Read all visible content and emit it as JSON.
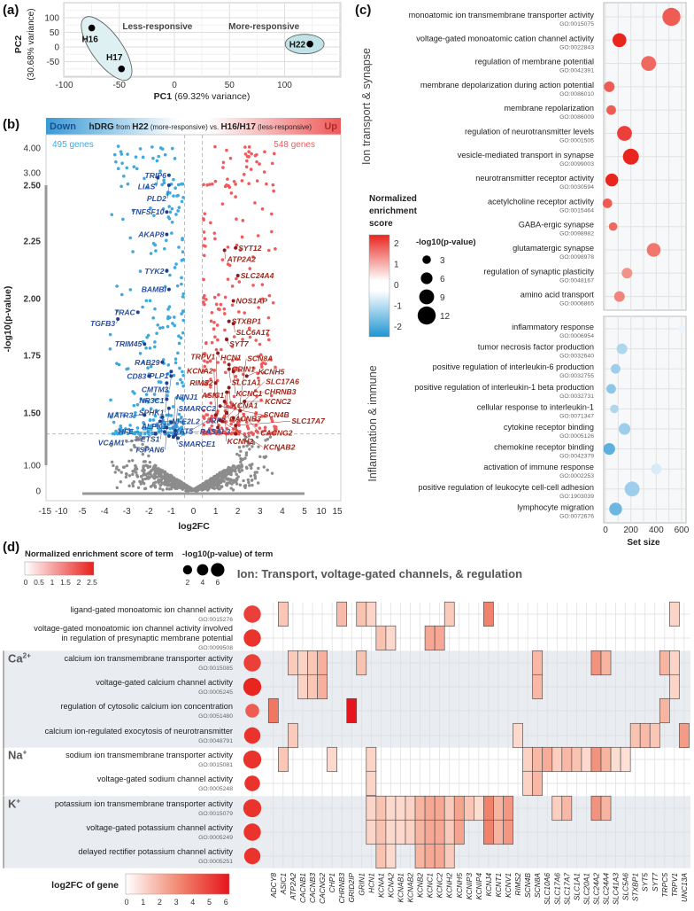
{
  "panel_labels": {
    "a": "(a)",
    "b": "(b)",
    "c": "(c)",
    "d": "(d)"
  },
  "chart_data": [
    {
      "type": "scatter",
      "title": "PCA",
      "xlabel_bold": "PC1",
      "xlabel": "(69.32% variance)",
      "ylabel_bold": "PC2",
      "ylabel": "(30.68% variance)",
      "xticks": [
        -100,
        -50,
        0,
        50,
        100
      ],
      "yticks": [
        -50,
        0,
        50,
        100
      ],
      "xlim": [
        -100,
        151
      ],
      "ylim": [
        -103,
        151
      ],
      "points": [
        {
          "label": "H16",
          "x": -75,
          "y": 65
        },
        {
          "label": "H17",
          "x": -48,
          "y": -75
        },
        {
          "label": "H22",
          "x": 123,
          "y": 10
        }
      ],
      "groups": [
        {
          "label": "Less-responsive",
          "members": [
            "H16",
            "H17"
          ],
          "color": "#dff0f2"
        },
        {
          "label": "More-responsive",
          "members": [
            "H22"
          ],
          "color": "#bfe3e6"
        }
      ]
    },
    {
      "type": "scatter",
      "title": {
        "down": "Down",
        "up": "Up",
        "p1": "hDRG",
        "p2": " from ",
        "p3": "H22",
        "p4": " (more-responsive) vs. ",
        "p5": "H16/H17",
        "p6": " (less-responsive)"
      },
      "xlabel": "log2FC",
      "ylabel": "-log10(p-value)",
      "down_count": "495 genes",
      "up_count": "548 genes",
      "colors": {
        "down": "#3fa9de",
        "up": "#f05a5b",
        "ns": "#8c8c8c",
        "down_label": "#1f3f8f",
        "up_label": "#8b1a1a"
      },
      "xticks": [
        "-15",
        "-10",
        "-5",
        "-4",
        "-3",
        "-2",
        "-1",
        "0",
        "1",
        "2",
        "3",
        "4",
        "5",
        "10",
        "15"
      ],
      "yticks": [
        {
          "label": "4.00",
          "v": 4,
          "bold": false
        },
        {
          "label": "3.00",
          "v": 3,
          "bold": false
        },
        {
          "label": "2.50",
          "v": 2.5,
          "bold": true
        },
        {
          "label": "2.25",
          "v": 2.25,
          "bold": true
        },
        {
          "label": "2.00",
          "v": 2,
          "bold": true
        },
        {
          "label": "1.75",
          "v": 1.75,
          "bold": true
        },
        {
          "label": "1.50",
          "v": 1.5,
          "bold": true
        },
        {
          "label": "1.00",
          "v": 1,
          "bold": false
        },
        {
          "label": "0",
          "v": 0,
          "bold": false
        }
      ],
      "fc_threshold": 0.4,
      "p_threshold": 1.3,
      "down_genes": [
        {
          "g": "TRIP6",
          "x": -1.1,
          "y": 2.9
        },
        {
          "g": "LIAS",
          "x": -1.6,
          "y": 2.8
        },
        {
          "g": "PLD2",
          "x": -1.1,
          "y": 2.5
        },
        {
          "g": "TNFSF10",
          "x": -1.2,
          "y": 2.38
        },
        {
          "g": "AKAP8",
          "x": -1.2,
          "y": 2.28
        },
        {
          "g": "TYK2",
          "x": -1.2,
          "y": 2.12
        },
        {
          "g": "BAMBI",
          "x": -1.1,
          "y": 2.04
        },
        {
          "g": "TRAC",
          "x": -2.5,
          "y": 1.94
        },
        {
          "g": "TGFB3",
          "x": -3.4,
          "y": 1.91
        },
        {
          "g": "TRIM45",
          "x": -2.2,
          "y": 1.8
        },
        {
          "g": "RAB29",
          "x": -1.4,
          "y": 1.72
        },
        {
          "g": "PLP1",
          "x": -1.0,
          "y": 1.68
        },
        {
          "g": "CMTM3",
          "x": -1.0,
          "y": 1.66
        },
        {
          "g": "CD83",
          "x": -2.0,
          "y": 1.66
        },
        {
          "g": "NR3C1",
          "x": -1.2,
          "y": 1.63
        },
        {
          "g": "SPHK1",
          "x": -1.2,
          "y": 1.56
        },
        {
          "g": "ALPK1",
          "x": -1.1,
          "y": 1.52
        },
        {
          "g": "MATR3",
          "x": -2.2,
          "y": 1.48
        },
        {
          "g": "ETS1",
          "x": -1.4,
          "y": 1.46
        },
        {
          "g": "NFE2L2",
          "x": -1.5,
          "y": 1.42
        },
        {
          "g": "KAT5",
          "x": -1.0,
          "y": 1.41
        },
        {
          "g": "TSPAN6",
          "x": -1.2,
          "y": 1.36
        },
        {
          "g": "SMARCE1",
          "x": -0.8,
          "y": 1.33
        },
        {
          "g": "HFE",
          "x": -1.3,
          "y": 1.32
        },
        {
          "g": "VCAM1",
          "x": -1.7,
          "y": 1.3
        },
        {
          "g": "SMARCC2",
          "x": -0.8,
          "y": 1.29
        },
        {
          "g": "RASAL3",
          "x": -1.1,
          "y": 1.28
        },
        {
          "g": "NINJ1",
          "x": -0.9,
          "y": 1.27
        },
        {
          "g": "IRF3",
          "x": -0.7,
          "y": 1.26
        }
      ],
      "up_genes": [
        {
          "g": "SYT12",
          "x": 1.9,
          "y": 2.22
        },
        {
          "g": "ATP2A2",
          "x": 1.4,
          "y": 2.21
        },
        {
          "g": "SLC24A4",
          "x": 2.0,
          "y": 2.1
        },
        {
          "g": "NOS1AP",
          "x": 1.8,
          "y": 1.99
        },
        {
          "g": "STXBP1",
          "x": 1.6,
          "y": 1.9
        },
        {
          "g": "SLC6A17",
          "x": 1.8,
          "y": 1.89
        },
        {
          "g": "SYT7",
          "x": 1.5,
          "y": 1.82
        },
        {
          "g": "HCN1",
          "x": 1.1,
          "y": 1.76
        },
        {
          "g": "GRIN1",
          "x": 1.6,
          "y": 1.71
        },
        {
          "g": "SLC1A1",
          "x": 1.6,
          "y": 1.69
        },
        {
          "g": "KCNC1",
          "x": 1.8,
          "y": 1.68
        },
        {
          "g": "KCNH5",
          "x": 2.4,
          "y": 1.66
        },
        {
          "g": "RIMS2",
          "x": 1.0,
          "y": 1.63
        },
        {
          "g": "KCNA1",
          "x": 1.6,
          "y": 1.61
        },
        {
          "g": "CACNB3",
          "x": 1.5,
          "y": 1.59
        },
        {
          "g": "KCNH2",
          "x": 1.4,
          "y": 1.55
        },
        {
          "g": "KCNC2",
          "x": 2.3,
          "y": 1.55
        },
        {
          "g": "SCN4B",
          "x": 1.2,
          "y": 1.53
        },
        {
          "g": "CACNG2",
          "x": 2.1,
          "y": 1.51
        },
        {
          "g": "ASIC1",
          "x": 1.5,
          "y": 1.5
        },
        {
          "g": "KCNA2",
          "x": 1.0,
          "y": 1.48
        },
        {
          "g": "CHRNB3",
          "x": 1.8,
          "y": 1.45
        },
        {
          "g": "KCNAB2",
          "x": 1.2,
          "y": 1.43
        },
        {
          "g": "SLC17A6",
          "x": 1.3,
          "y": 1.42
        },
        {
          "g": "SLC17A7",
          "x": 1.9,
          "y": 1.38
        },
        {
          "g": "TRPV1",
          "x": 1.1,
          "y": 1.36
        },
        {
          "g": "SCN8A",
          "x": 1.9,
          "y": 1.3
        }
      ]
    },
    {
      "type": "scatter",
      "title": "GO enrichment",
      "xlabel": "Set size",
      "xticks": [
        0,
        200,
        400,
        600
      ],
      "xlim": [
        0,
        600
      ],
      "legend_color_title": [
        "Normalized",
        "enrichment",
        "score"
      ],
      "legend_color_ticks": [
        2,
        1,
        0,
        -1,
        -2
      ],
      "legend_size_title": "-log10(p-value)",
      "legend_size_values": [
        3,
        6,
        9,
        12
      ],
      "groups": [
        {
          "label": "Ion transport & synapse",
          "terms": [
            {
              "name": "monoatomic ion transmembrane transporter activity",
              "go": "GO:0015075",
              "size": 520,
              "nes": 1.8,
              "p": 12
            },
            {
              "name": "voltage-gated monoatomic cation channel activity",
              "go": "GO:0022843",
              "size": 110,
              "nes": 2.2,
              "p": 8
            },
            {
              "name": "regulation of membrane potential",
              "go": "GO:0042391",
              "size": 340,
              "nes": 1.7,
              "p": 9
            },
            {
              "name": "membrane depolarization during action potential",
              "go": "GO:0086010",
              "size": 30,
              "nes": 1.8,
              "p": 5
            },
            {
              "name": "membrane repolarization",
              "go": "GO:0086009",
              "size": 45,
              "nes": 1.8,
              "p": 4
            },
            {
              "name": "regulation of neurotransmitter levels",
              "go": "GO:0001505",
              "size": 150,
              "nes": 2.0,
              "p": 9
            },
            {
              "name": "vesicle-mediated transport in synapse",
              "go": "GO:0099003",
              "size": 200,
              "nes": 2.2,
              "p": 10
            },
            {
              "name": "neurotransmitter receptor activity",
              "go": "GO:0030594",
              "size": 50,
              "nes": 2.2,
              "p": 7
            },
            {
              "name": "acetylcholine receptor activity",
              "go": "GO:0015464",
              "size": 15,
              "nes": 1.8,
              "p": 4
            },
            {
              "name": "GABA-ergic synapse",
              "go": "GO:0098982",
              "size": 60,
              "nes": 1.7,
              "p": 3
            },
            {
              "name": "glutamatergic synapse",
              "go": "GO:0098978",
              "size": 380,
              "nes": 1.6,
              "p": 8
            },
            {
              "name": "regulation of synaptic plasticity",
              "go": "GO:0048167",
              "size": 170,
              "nes": 1.4,
              "p": 5
            },
            {
              "name": "amino acid transport",
              "go": "GO:0006865",
              "size": 110,
              "nes": 1.5,
              "p": 5
            }
          ]
        },
        {
          "label": "Inflammation & immune",
          "terms": [
            {
              "name": "inflammatory response",
              "go": "GO:0006954",
              "size": 600,
              "nes": -0.4,
              "p": 2
            },
            {
              "name": "tumor necrosis factor production",
              "go": "GO:0032640",
              "size": 130,
              "nes": -1.2,
              "p": 5
            },
            {
              "name": "positive regulation of interleukin-6 production",
              "go": "GO:0032755",
              "size": 80,
              "nes": -1.3,
              "p": 4
            },
            {
              "name": "positive regulation of interleukin-1 beta production",
              "go": "GO:0032731",
              "size": 45,
              "nes": -1.4,
              "p": 4
            },
            {
              "name": "cellular response to interleukin-1",
              "go": "GO:0071347",
              "size": 70,
              "nes": -1.2,
              "p": 3
            },
            {
              "name": "cytokine receptor binding",
              "go": "GO:0005126",
              "size": 150,
              "nes": -1.3,
              "p": 6
            },
            {
              "name": "chemokine receptor binding",
              "go": "GO:0042379",
              "size": 30,
              "nes": -1.7,
              "p": 6
            },
            {
              "name": "activation of immune response",
              "go": "GO:0002253",
              "size": 400,
              "nes": -0.8,
              "p": 5
            },
            {
              "name": "positive regulation of leukocyte cell-cell adhesion",
              "go": "GO:1903039",
              "size": 210,
              "nes": -1.3,
              "p": 9
            },
            {
              "name": "lymphocyte migration",
              "go": "GO:0072676",
              "size": 80,
              "nes": -1.6,
              "p": 7
            }
          ]
        }
      ]
    },
    {
      "type": "heatmap",
      "title": "Ion: Transport, voltage-gated channels, & regulation",
      "legend_nes_title": "Normalized enrichment score of term",
      "legend_nes_ticks": [
        "0",
        "0.5",
        "1",
        "1.5",
        "2",
        "2.5"
      ],
      "legend_p_title": "-log10(p-value) of term",
      "legend_p_values": [
        2,
        4,
        6
      ],
      "legend_fc_title": "log2FC of gene",
      "legend_fc_ticks": [
        "0",
        "1",
        "2",
        "3",
        "4",
        "5",
        "6"
      ],
      "ion_groups": [
        {
          "label": "Ca",
          "sup": "2+",
          "rows": [
            2,
            5
          ]
        },
        {
          "label": "Na",
          "sup": "+",
          "rows": [
            6,
            7
          ]
        },
        {
          "label": "K",
          "sup": "+",
          "rows": [
            8,
            10
          ]
        }
      ],
      "genes": [
        "ADCY8",
        "ASIC1",
        "ATP2A2",
        "CACNB1",
        "CACNB3",
        "CACNG2",
        "CHP1",
        "CHRNB3",
        "GRID2IP",
        "GRIN1",
        "HCN1",
        "KCNA1",
        "KCNA2",
        "KCNAB1",
        "KCNAB2",
        "KCNB2",
        "KCNC1",
        "KCNC2",
        "KCNH2",
        "KCNH5",
        "KCNIP3",
        "KCNIP4",
        "KCNJ4",
        "KCNT1",
        "KCNV1",
        "RIMS2",
        "SCN4B",
        "SCN8A",
        "SLC10A6",
        "SLC17A6",
        "SLC17A7",
        "SLC1A1",
        "SLC20A1",
        "SLC24A2",
        "SLC24A4",
        "SLC41A3",
        "SLC5A6",
        "STXBP1",
        "SYT5",
        "SYT7",
        "TRPC5",
        "TRPV1",
        "UNC13A"
      ],
      "gene_log2fc": [
        3.5,
        1.5,
        1.4,
        1.2,
        1.5,
        2.1,
        1.0,
        1.8,
        6.0,
        1.6,
        1.1,
        1.6,
        1.0,
        1.0,
        1.2,
        2.0,
        2.3,
        2.3,
        1.4,
        2.4,
        1.5,
        0.9,
        3.2,
        2.0,
        2.7,
        1.0,
        1.2,
        1.9,
        2.2,
        1.3,
        1.9,
        1.6,
        1.0,
        2.8,
        2.0,
        0.9,
        0.8,
        1.6,
        1.8,
        1.5,
        2.0,
        1.1,
        2.6
      ],
      "terms": [
        {
          "lines": [
            "ligand-gated monoatomic ion channel activity"
          ],
          "go": "GO:0015276",
          "nes": 2.0,
          "p": 6,
          "genes": [
            "ASIC1",
            "CHRNB3",
            "GRIN1",
            "HCN1",
            "KCNH2",
            "KCNJ4",
            "TRPV1"
          ]
        },
        {
          "lines": [
            "voltage-gated monoatomic ion channel activity involved",
            "in regulation of presynaptic membrane potential"
          ],
          "go": "GO:0099508",
          "nes": 2.1,
          "p": 6,
          "genes": [
            "KCNA1",
            "KCNA2",
            "KCNC1",
            "KCNC2"
          ]
        },
        {
          "lines": [
            "calcium ion transmembrane transporter activity"
          ],
          "go": "GO:0015085",
          "nes": 2.0,
          "p": 6,
          "genes": [
            "ATP2A2",
            "CACNB1",
            "CACNB3",
            "CACNG2",
            "GRIN1",
            "SCN8A",
            "SLC24A2",
            "SLC24A4",
            "TRPC5",
            "TRPV1"
          ]
        },
        {
          "lines": [
            "voltage-gated calcium channel activity"
          ],
          "go": "GO:0005245",
          "nes": 2.3,
          "p": 6.5,
          "genes": [
            "CACNB1",
            "CACNB3",
            "CACNG2",
            "SCN8A",
            "TRPV1"
          ]
        },
        {
          "lines": [
            "regulation of cytosolic calcium ion concentration"
          ],
          "go": "GO:0051480",
          "nes": 1.8,
          "p": 4,
          "genes": [
            "ADCY8",
            "GRID2IP",
            "TRPC5"
          ]
        },
        {
          "lines": [
            "calcium ion-regulated exocytosis of neurotransmitter"
          ],
          "go": "GO:0048791",
          "nes": 2.1,
          "p": 5.5,
          "genes": [
            "ATP2A2",
            "RIMS2",
            "STXBP1",
            "SYT5",
            "SYT7",
            "UNC13A"
          ]
        },
        {
          "lines": [
            "sodium ion transmembrane transporter activity"
          ],
          "go": "GO:0015081",
          "nes": 2.1,
          "p": 6.5,
          "genes": [
            "ASIC1",
            "CHP1",
            "HCN1",
            "SCN4B",
            "SCN8A",
            "SLC10A6",
            "SLC17A6",
            "SLC17A7",
            "SLC1A1",
            "SLC20A1",
            "SLC24A2",
            "SLC24A4",
            "SLC41A3",
            "SLC5A6"
          ]
        },
        {
          "lines": [
            "voltage-gated sodium channel activity"
          ],
          "go": "GO:0005248",
          "nes": 2.1,
          "p": 5,
          "genes": [
            "HCN1",
            "SCN4B",
            "SCN8A"
          ]
        },
        {
          "lines": [
            "potassium ion transmembrane transporter activity"
          ],
          "go": "GO:0015079",
          "nes": 2.1,
          "p": 6.5,
          "genes": [
            "HCN1",
            "KCNA1",
            "KCNA2",
            "KCNAB1",
            "KCNAB2",
            "KCNB2",
            "KCNC1",
            "KCNC2",
            "KCNH2",
            "KCNH5",
            "KCNIP3",
            "KCNIP4",
            "KCNJ4",
            "KCNT1",
            "KCNV1",
            "SLC17A6",
            "SLC17A7",
            "SLC24A2",
            "SLC24A4"
          ]
        },
        {
          "lines": [
            "voltage-gated potassium channel activity"
          ],
          "go": "GO:0005249",
          "nes": 2.1,
          "p": 6,
          "genes": [
            "HCN1",
            "KCNA1",
            "KCNA2",
            "KCNAB1",
            "KCNAB2",
            "KCNB2",
            "KCNC1",
            "KCNC2",
            "KCNH2",
            "KCNH5",
            "KCNJ4",
            "KCNT1",
            "KCNV1"
          ]
        },
        {
          "lines": [
            "delayed rectifier potassium channel activity"
          ],
          "go": "GO:0005251",
          "nes": 2.1,
          "p": 5.5,
          "genes": [
            "KCNA1",
            "KCNA2",
            "KCNB2",
            "KCNC1",
            "KCNC2",
            "KCNH2"
          ]
        }
      ]
    }
  ]
}
